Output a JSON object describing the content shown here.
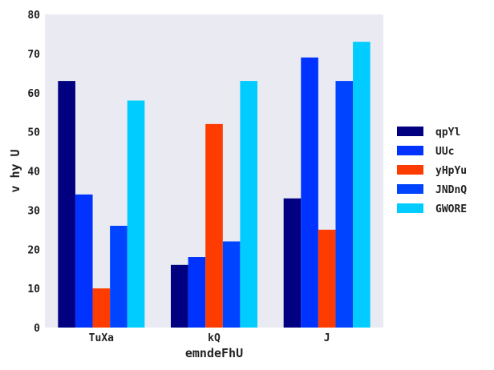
{
  "chart_data": {
    "type": "bar",
    "categories": [
      "TuXa",
      "kQ",
      "J"
    ],
    "series": [
      {
        "name": "qpYl",
        "color": "#000080",
        "values": [
          63,
          16,
          33
        ]
      },
      {
        "name": "UUc",
        "color": "#0033ff",
        "values": [
          34,
          18,
          69
        ]
      },
      {
        "name": "yHpYu",
        "color": "#ff3c00",
        "values": [
          10,
          52,
          25
        ]
      },
      {
        "name": "JNDnQ",
        "color": "#0044ff",
        "values": [
          26,
          22,
          63
        ]
      },
      {
        "name": "GWORE",
        "color": "#00ccff",
        "values": [
          58,
          63,
          73
        ]
      }
    ],
    "xlabel": "emndeFhU",
    "ylabel": "v hy U",
    "ylim": [
      0,
      80
    ],
    "yticks": [
      0,
      10,
      20,
      30,
      40,
      50,
      60,
      70,
      80
    ],
    "grid": false,
    "legend_position": "right",
    "background": "#eaeaf2"
  }
}
